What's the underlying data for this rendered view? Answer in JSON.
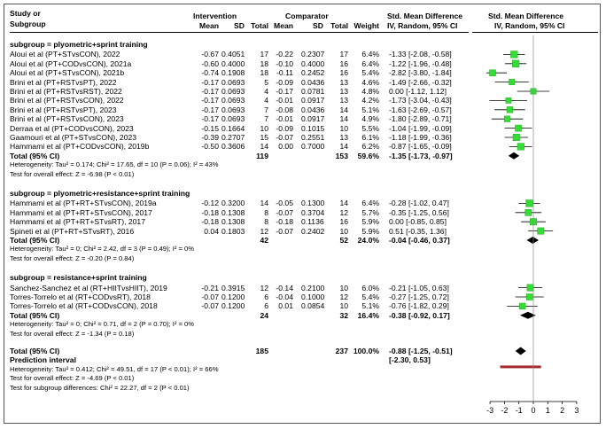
{
  "header": {
    "col_study": "Study or",
    "col_subgroup": "Subgroup",
    "intervention": "Intervention",
    "comparator": "Comparator",
    "mean": "Mean",
    "sd": "SD",
    "total": "Total",
    "weight": "Weight",
    "smd_title": "Std. Mean Difference",
    "smd_method": "IV, Random, 95% CI",
    "plot_title": "Std. Mean Difference",
    "plot_method": "IV, Random, 95% CI"
  },
  "rows": [
    {
      "type": "heading",
      "text": "subgroup = plyometric+sprint training"
    },
    {
      "type": "study",
      "name": "Aloui et al (PT+STvsCON), 2022",
      "im": "-0.67",
      "isd": "0.4051",
      "in": "17",
      "cm": "-0.22",
      "csd": "0.2307",
      "cn": "17",
      "w": "6.4%",
      "ci": "-1.33 [-2.08, -0.58]"
    },
    {
      "type": "study",
      "name": "Aloui et al (PT+CODvsCON), 2021a",
      "im": "-0.60",
      "isd": "0.4000",
      "in": "18",
      "cm": "-0.10",
      "csd": "0.4000",
      "cn": "16",
      "w": "6.4%",
      "ci": "-1.22 [-1.96, -0.48]"
    },
    {
      "type": "study",
      "name": "Aloui et al (PT+STvsCON), 2021b",
      "im": "-0.74",
      "isd": "0.1908",
      "in": "18",
      "cm": "-0.11",
      "csd": "0.2452",
      "cn": "16",
      "w": "5.4%",
      "ci": "-2.82 [-3.80, -1.84]"
    },
    {
      "type": "study",
      "name": "Brini et al (PT+RSTvsPT), 2022",
      "im": "-0.17",
      "isd": "0.0693",
      "in": "5",
      "cm": "-0.09",
      "csd": "0.0436",
      "cn": "13",
      "w": "4.6%",
      "ci": "-1.49 [-2.66, -0.32]"
    },
    {
      "type": "study",
      "name": "Brini et al (PT+RSTvsRST), 2022",
      "im": "-0.17",
      "isd": "0.0693",
      "in": "4",
      "cm": "-0.17",
      "csd": "0.0781",
      "cn": "13",
      "w": "4.8%",
      "ci": "0.00 [-1.12,  1.12]"
    },
    {
      "type": "study",
      "name": "Brini et al (PT+RSTvsCON), 2022",
      "im": "-0.17",
      "isd": "0.0693",
      "in": "4",
      "cm": "-0.01",
      "csd": "0.0917",
      "cn": "13",
      "w": "4.2%",
      "ci": "-1.73 [-3.04, -0.43]"
    },
    {
      "type": "study",
      "name": "Brini et al (PT+RSTvsPT), 2023",
      "im": "-0.17",
      "isd": "0.0693",
      "in": "7",
      "cm": "-0.08",
      "csd": "0.0436",
      "cn": "14",
      "w": "5.1%",
      "ci": "-1.63 [-2.69, -0.57]"
    },
    {
      "type": "study",
      "name": "Brini et al (PT+RSTvsCON), 2023",
      "im": "-0.17",
      "isd": "0.0693",
      "in": "7",
      "cm": "-0.01",
      "csd": "0.0917",
      "cn": "14",
      "w": "4.9%",
      "ci": "-1.80 [-2.89, -0.71]"
    },
    {
      "type": "study",
      "name": "Derraa et al (PT+CODvsCON), 2023",
      "im": "-0.15",
      "isd": "0.1664",
      "in": "10",
      "cm": "-0.09",
      "csd": "0.1015",
      "cn": "10",
      "w": "5.5%",
      "ci": "-1.04 [-1.99, -0.09]"
    },
    {
      "type": "study",
      "name": "Gaamouri et al (PT+STvsCON), 2023",
      "im": "-0.39",
      "isd": "0.2707",
      "in": "15",
      "cm": "-0.07",
      "csd": "0.2551",
      "cn": "13",
      "w": "6.1%",
      "ci": "-1.18 [-1.99, -0.36]"
    },
    {
      "type": "study",
      "name": "Hammami et al (PT+CODvsCON), 2019b",
      "im": "-0.50",
      "isd": "0.3606",
      "in": "14",
      "cm": "0.00",
      "csd": "0.7000",
      "cn": "14",
      "w": "6.2%",
      "ci": "-0.87 [-1.65, -0.09]"
    },
    {
      "type": "total",
      "name": "Total (95% CI)",
      "in": "119",
      "cn": "153",
      "w": "59.6%",
      "ci": "-1.35 [-1.73, -0.97]"
    },
    {
      "type": "note",
      "text": "Heterogeneity: Tau² = 0.174; Chi² = 17.65, df = 10 (P = 0.06); I² = 43%"
    },
    {
      "type": "note",
      "text": "Test for overall effect: Z = -6.98 (P < 0.01)"
    },
    {
      "type": "gap"
    },
    {
      "type": "heading",
      "text": "subgroup = plyometric+resistance+sprint training"
    },
    {
      "type": "study",
      "name": "Hammami et al (PT+RT+STvsCON), 2019a",
      "im": "-0.12",
      "isd": "0.3200",
      "in": "14",
      "cm": "-0.05",
      "csd": "0.1300",
      "cn": "14",
      "w": "6.4%",
      "ci": "-0.28 [-1.02,  0.47]"
    },
    {
      "type": "study",
      "name": "Hammami et al (PT+RT+STvsCON), 2017",
      "im": "-0.18",
      "isd": "0.1308",
      "in": "8",
      "cm": "-0.07",
      "csd": "0.3704",
      "cn": "12",
      "w": "5.7%",
      "ci": "-0.35 [-1.25,  0.56]"
    },
    {
      "type": "study",
      "name": "Hammami et al (PT+RT+STvsRT), 2017",
      "im": "-0.18",
      "isd": "0.1308",
      "in": "8",
      "cm": "-0.18",
      "csd": "0.1136",
      "cn": "16",
      "w": "5.9%",
      "ci": "0.00 [-0.85,  0.85]"
    },
    {
      "type": "study",
      "name": "Spineti et al (PT+RT+STvsRT), 2016",
      "im": "0.04",
      "isd": "0.1803",
      "in": "12",
      "cm": "-0.07",
      "csd": "0.2402",
      "cn": "10",
      "w": "5.9%",
      "ci": "0.51 [-0.35,  1.36]"
    },
    {
      "type": "total",
      "name": "Total (95% CI)",
      "in": "42",
      "cn": "52",
      "w": "24.0%",
      "ci": "-0.04 [-0.46,  0.37]"
    },
    {
      "type": "note",
      "text": "Heterogeneity: Tau² = 0; Chi² = 2.42, df = 3 (P = 0.49); I² = 0%"
    },
    {
      "type": "note",
      "text": "Test for overall effect: Z = -0.20 (P = 0.84)"
    },
    {
      "type": "gap"
    },
    {
      "type": "heading",
      "text": "subgroup = resistance+sprint training"
    },
    {
      "type": "study",
      "name": "Sanchez-Sanchez et al (RT+HIITvsHIIT), 2019",
      "im": "-0.21",
      "isd": "0.3915",
      "in": "12",
      "cm": "-0.14",
      "csd": "0.2100",
      "cn": "10",
      "w": "6.0%",
      "ci": "-0.21 [-1.05,  0.63]"
    },
    {
      "type": "study",
      "name": "Torres-Torrelo et al (RT+CODvsRT), 2018",
      "im": "-0.07",
      "isd": "0.1200",
      "in": "6",
      "cm": "-0.04",
      "csd": "0.1000",
      "cn": "12",
      "w": "5.4%",
      "ci": "-0.27 [-1.25,  0.72]"
    },
    {
      "type": "study",
      "name": "Torres-Torrelo et al (RT+CODvsCON), 2018",
      "im": "-0.07",
      "isd": "0.1200",
      "in": "6",
      "cm": "0.01",
      "csd": "0.0854",
      "cn": "10",
      "w": "5.1%",
      "ci": "-0.76 [-1.82,  0.29]"
    },
    {
      "type": "total",
      "name": "Total (95% CI)",
      "in": "24",
      "cn": "32",
      "w": "16.4%",
      "ci": "-0.38 [-0.92,  0.17]"
    },
    {
      "type": "note",
      "text": "Heterogeneity: Tau² = 0; Chi² = 0.71, df = 2 (P = 0.70); I² = 0%"
    },
    {
      "type": "note",
      "text": "Test for overall effect: Z = -1.34 (P = 0.18)"
    },
    {
      "type": "gap"
    },
    {
      "type": "overall",
      "name": "Total (95% CI)",
      "in": "185",
      "cn": "237",
      "w": "100.0%",
      "ci": "-0.88 [-1.25, -0.51]"
    },
    {
      "type": "pi",
      "name": "Prediction interval",
      "ci": "[-2.30,  0.53]"
    },
    {
      "type": "note",
      "text": "Heterogeneity: Tau² = 0.412; Chi² = 49.51, df = 17 (P < 0.01); I² = 66%"
    },
    {
      "type": "note",
      "text": "Test for overall effect: Z = -4.69 (P < 0.01)"
    },
    {
      "type": "note",
      "text": "Test for subgroup differences: Chi² = 22.27, df = 2 (P < 0.01)"
    }
  ],
  "chart_data": {
    "type": "forest",
    "xlim": [
      -3,
      3
    ],
    "ticks": [
      "-3",
      "-2",
      "-1",
      "0",
      "1",
      "2",
      "3"
    ],
    "tick_values": [
      -3,
      -2,
      -1,
      0,
      1,
      2,
      3
    ],
    "colors": {
      "square": "#33dd33",
      "diamond": "#000000",
      "prediction": "#a52a2a"
    },
    "subgroups": [
      {
        "name": "plyometric+sprint training",
        "studies": [
          {
            "est": -1.33,
            "lo": -2.08,
            "hi": -0.58,
            "weight": 6.4
          },
          {
            "est": -1.22,
            "lo": -1.96,
            "hi": -0.48,
            "weight": 6.4
          },
          {
            "est": -2.82,
            "lo": -3.8,
            "hi": -1.84,
            "weight": 5.4
          },
          {
            "est": -1.49,
            "lo": -2.66,
            "hi": -0.32,
            "weight": 4.6
          },
          {
            "est": 0.0,
            "lo": -1.12,
            "hi": 1.12,
            "weight": 4.8
          },
          {
            "est": -1.73,
            "lo": -3.04,
            "hi": -0.43,
            "weight": 4.2
          },
          {
            "est": -1.63,
            "lo": -2.69,
            "hi": -0.57,
            "weight": 5.1
          },
          {
            "est": -1.8,
            "lo": -2.89,
            "hi": -0.71,
            "weight": 4.9
          },
          {
            "est": -1.04,
            "lo": -1.99,
            "hi": -0.09,
            "weight": 5.5
          },
          {
            "est": -1.18,
            "lo": -1.99,
            "hi": -0.36,
            "weight": 6.1
          },
          {
            "est": -0.87,
            "lo": -1.65,
            "hi": -0.09,
            "weight": 6.2
          }
        ],
        "pooled": {
          "est": -1.35,
          "lo": -1.73,
          "hi": -0.97
        }
      },
      {
        "name": "plyometric+resistance+sprint training",
        "studies": [
          {
            "est": -0.28,
            "lo": -1.02,
            "hi": 0.47,
            "weight": 6.4
          },
          {
            "est": -0.35,
            "lo": -1.25,
            "hi": 0.56,
            "weight": 5.7
          },
          {
            "est": 0.0,
            "lo": -0.85,
            "hi": 0.85,
            "weight": 5.9
          },
          {
            "est": 0.51,
            "lo": -0.35,
            "hi": 1.36,
            "weight": 5.9
          }
        ],
        "pooled": {
          "est": -0.04,
          "lo": -0.46,
          "hi": 0.37
        }
      },
      {
        "name": "resistance+sprint training",
        "studies": [
          {
            "est": -0.21,
            "lo": -1.05,
            "hi": 0.63,
            "weight": 6.0
          },
          {
            "est": -0.27,
            "lo": -1.25,
            "hi": 0.72,
            "weight": 5.4
          },
          {
            "est": -0.76,
            "lo": -1.82,
            "hi": 0.29,
            "weight": 5.1
          }
        ],
        "pooled": {
          "est": -0.38,
          "lo": -0.92,
          "hi": 0.17
        }
      }
    ],
    "overall": {
      "est": -0.88,
      "lo": -1.25,
      "hi": -0.51
    },
    "prediction_interval": {
      "lo": -2.3,
      "hi": 0.53
    }
  }
}
